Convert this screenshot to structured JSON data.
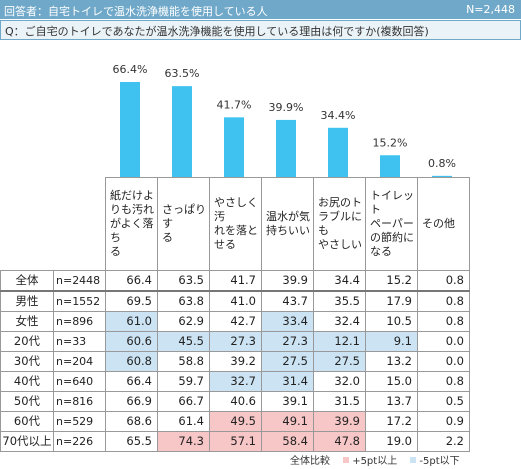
{
  "header": {
    "respondents_label": "回答者：",
    "respondents": "自宅トイレで温水洗浄機能を使用している人",
    "n_total": "N=2,448"
  },
  "question": "Q：ご自宅のトイレであなたが温水洗浄機能を使用している理由は何ですか(複数回答)",
  "chart_data": {
    "type": "bar",
    "categories": [
      "紙だけよりも汚れがよく落ちる",
      "さっぱりする",
      "やさしく汚れを落とせる",
      "温水が気持ちいい",
      "お尻のトラブルにもやさしい",
      "トイレットペーパーの節約になる",
      "その他"
    ],
    "values": [
      66.4,
      63.5,
      41.7,
      39.9,
      34.4,
      15.2,
      0.8
    ],
    "value_labels": [
      "66.4%",
      "63.5%",
      "41.7%",
      "39.9%",
      "34.4%",
      "15.2%",
      "0.8%"
    ],
    "ylim": [
      0,
      100
    ],
    "grid": false,
    "bar_color": "#3fc2f0"
  },
  "table": {
    "columns": [
      "紙だけよ|りも汚れ|がよく落ち|る",
      "さっぱりす|る",
      "やさしく汚|れを落と|せる",
      "温水が気|持ちいい",
      "お尻のト|ラブルにも|やさしい",
      "トイレット|ペーパー|の節約に|なる",
      "その他"
    ],
    "rows": [
      {
        "label": "全体",
        "n": "n=2448",
        "values": [
          "66.4",
          "63.5",
          "41.7",
          "39.9",
          "34.4",
          "15.2",
          "0.8"
        ],
        "marks": [
          "",
          "",
          "",
          "",
          "",
          "",
          ""
        ]
      },
      {
        "label": "男性",
        "n": "n=1552",
        "values": [
          "69.5",
          "63.8",
          "41.0",
          "43.7",
          "35.5",
          "17.9",
          "0.8"
        ],
        "marks": [
          "",
          "",
          "",
          "",
          "",
          "",
          ""
        ]
      },
      {
        "label": "女性",
        "n": "n=896",
        "values": [
          "61.0",
          "62.9",
          "42.7",
          "33.4",
          "32.4",
          "10.5",
          "0.8"
        ],
        "marks": [
          "lo",
          "",
          "",
          "lo",
          "",
          "",
          ""
        ]
      },
      {
        "label": "20代",
        "n": "n=33",
        "values": [
          "60.6",
          "45.5",
          "27.3",
          "27.3",
          "12.1",
          "9.1",
          "0.0"
        ],
        "marks": [
          "lo",
          "lo",
          "lo",
          "lo",
          "lo",
          "lo",
          ""
        ]
      },
      {
        "label": "30代",
        "n": "n=204",
        "values": [
          "60.8",
          "58.8",
          "39.2",
          "27.5",
          "27.5",
          "13.2",
          "0.0"
        ],
        "marks": [
          "lo",
          "",
          "",
          "lo",
          "lo",
          "",
          ""
        ]
      },
      {
        "label": "40代",
        "n": "n=640",
        "values": [
          "66.4",
          "59.7",
          "32.7",
          "31.4",
          "32.0",
          "15.0",
          "0.8"
        ],
        "marks": [
          "",
          "",
          "lo",
          "lo",
          "",
          "",
          ""
        ]
      },
      {
        "label": "50代",
        "n": "n=816",
        "values": [
          "66.9",
          "66.7",
          "40.6",
          "39.1",
          "31.5",
          "13.7",
          "0.5"
        ],
        "marks": [
          "",
          "",
          "",
          "",
          "",
          "",
          ""
        ]
      },
      {
        "label": "60代",
        "n": "n=529",
        "values": [
          "68.6",
          "61.4",
          "49.5",
          "49.1",
          "39.9",
          "17.2",
          "0.9"
        ],
        "marks": [
          "",
          "",
          "hi",
          "hi",
          "hi",
          "",
          ""
        ]
      },
      {
        "label": "70代以上",
        "n": "n=226",
        "values": [
          "65.5",
          "74.3",
          "57.1",
          "58.4",
          "47.8",
          "19.0",
          "2.2"
        ],
        "marks": [
          "",
          "hi",
          "hi",
          "hi",
          "hi",
          "",
          ""
        ]
      }
    ]
  },
  "legend": {
    "base": "全体比較",
    "high": "+5pt以上",
    "low": "-5pt以下",
    "high_color": "#f7c6c6",
    "low_color": "#cce3f3"
  }
}
